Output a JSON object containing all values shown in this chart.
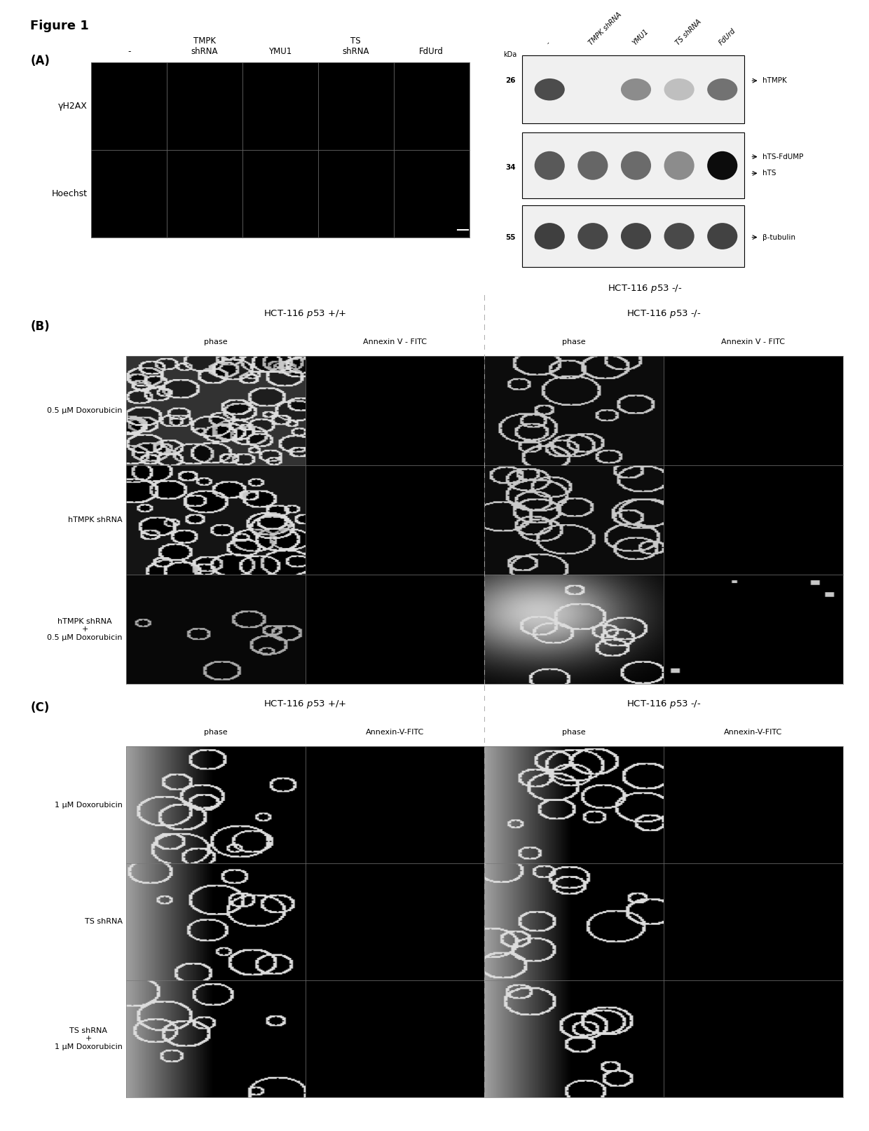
{
  "figure_title": "Figure 1",
  "bg_color": "#ffffff",
  "panel_A": {
    "label": "(A)",
    "left_col_headers": [
      "-",
      "TMPK\nshRNA",
      "YMU1",
      "TS\nshRNA",
      "FdUrd"
    ],
    "left_row_headers": [
      "γH2AX",
      "Hoechst"
    ],
    "wb_col_headers_rotated": [
      "-",
      "TMPK shRNA",
      "YMU1",
      "TS shRNA",
      "FdUrd"
    ],
    "kda_labels": [
      "26",
      "34",
      "55"
    ],
    "band_labels_right": [
      "→hTMPK",
      "→hTS-FdUMP\n→hTS",
      "→β-tubulin"
    ],
    "wb_footer": "HCT-116 p53 -/-"
  },
  "panel_B": {
    "label": "(B)",
    "group1_title": "HCT-116 p53 +/+",
    "group2_title": "HCT-116 p53 -/-",
    "col_headers": [
      "phase",
      "Annexin V - FITC",
      "phase",
      "Annexin V - FITC"
    ],
    "row_labels": [
      "0.5 μM Doxorubicin",
      "hTMPK shRNA",
      "hTMPK shRNA\n+\n0.5 μM Doxorubicin"
    ]
  },
  "panel_C": {
    "label": "(C)",
    "group1_title": "HCT-116 p53 +/+",
    "group2_title": "HCT-116 p53 -/-",
    "col_headers": [
      "phase",
      "Annexin-V-FITC",
      "phase",
      "Annexin-V-FITC"
    ],
    "row_labels": [
      "1 μM Doxorubicin",
      "TS shRNA",
      "TS shRNA\n+\n1 μM Doxorubicin"
    ]
  }
}
